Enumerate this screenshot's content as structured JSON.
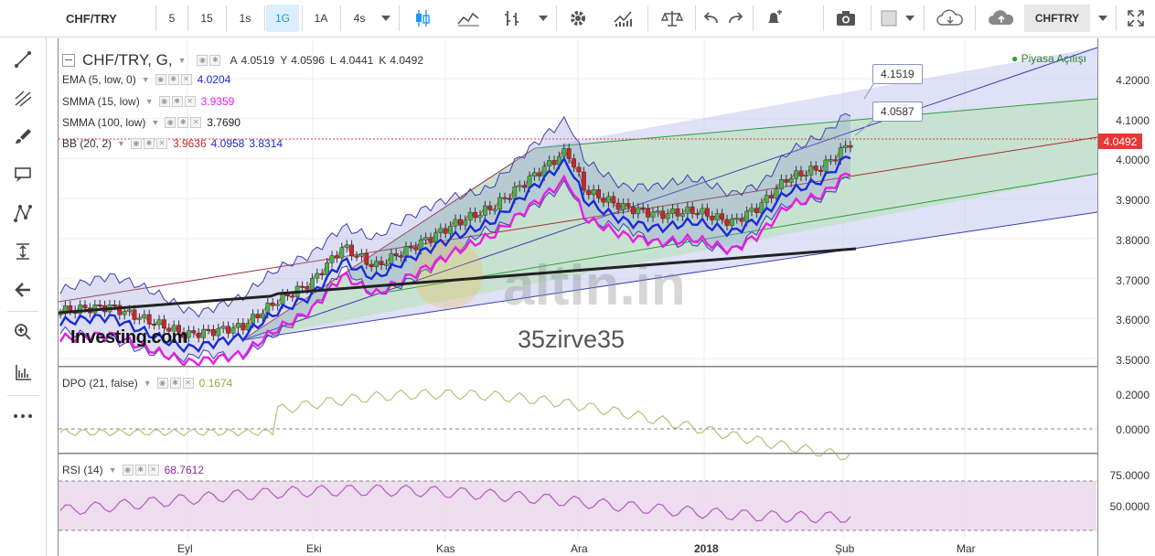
{
  "toolbar": {
    "symbol": "CHF/TRY",
    "intervals": [
      "5",
      "15",
      "1s",
      "1G",
      "1A",
      "4s"
    ],
    "active_interval": "1G",
    "symbol_right": "CHFTRY"
  },
  "legend": {
    "title": "CHF/TRY, G,",
    "ohlc": {
      "a_label": "A",
      "a": "4.0519",
      "y_label": "Y",
      "y": "4.0596",
      "l_label": "L",
      "l": "4.0441",
      "k_label": "K",
      "k": "4.0492"
    },
    "ema": {
      "label": "EMA (5, low, 0)",
      "value": "4.0204",
      "color": "#1a2bd6"
    },
    "smma15": {
      "label": "SMMA (15, low)",
      "value": "3.9359",
      "color": "#e91ee1"
    },
    "smma100": {
      "label": "SMMA (100, low)",
      "value": "3.7690",
      "color": "#222222"
    },
    "bb": {
      "label": "BB (20, 2)",
      "v1": "3.9636",
      "v2": "4.0958",
      "v3": "3.8314",
      "c1": "#c62828",
      "c2": "#1a2bd6",
      "c3": "#1a2bd6"
    }
  },
  "market_status": "Piyasa Açılışı",
  "price_axis": [
    "4.2000",
    "4.1000",
    "4.0000",
    "3.9000",
    "3.8000",
    "3.7000",
    "3.6000",
    "3.5000"
  ],
  "current_price": "4.0492",
  "callouts": [
    "4.1519",
    "4.0587"
  ],
  "dpo": {
    "label": "DPO (21, false)",
    "value": "0.1674",
    "axis": [
      "0.2000",
      "0.0000"
    ]
  },
  "rsi": {
    "label": "RSI (14)",
    "value": "68.7612",
    "axis": [
      "75.0000",
      "50.0000"
    ]
  },
  "x_axis": [
    "Eyl",
    "Eki",
    "Kas",
    "Ara",
    "2018",
    "Şub",
    "Mar"
  ],
  "watermark": {
    "brand": "altin.in",
    "user": "35zirve35",
    "logo": "Investing.com"
  },
  "colors": {
    "accent": "#2196f3",
    "up": "#4caf50",
    "down": "#c62828",
    "ema": "#1a2bd6",
    "smma15": "#e91ee1",
    "current_price_bg": "#e53935"
  }
}
